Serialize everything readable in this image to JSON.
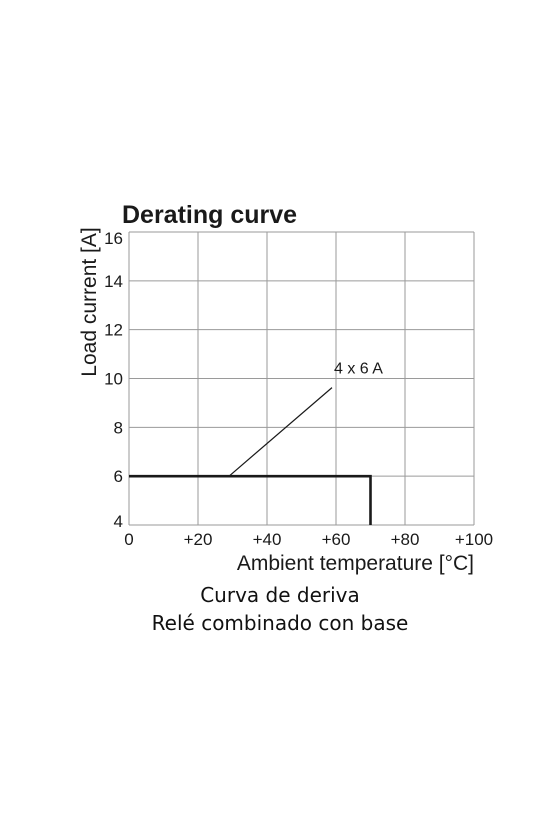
{
  "chart_data": {
    "type": "line",
    "title": "Derating curve",
    "xlabel": "Ambient temperature [°C]",
    "ylabel": "Load current [A]",
    "xlim": [
      0,
      100
    ],
    "ylim": [
      4,
      16
    ],
    "xticks": [
      0,
      20,
      40,
      60,
      80,
      100
    ],
    "xtick_labels": [
      "0",
      "+20",
      "+40",
      "+60",
      "+80",
      "+100"
    ],
    "yticks": [
      4,
      6,
      8,
      10,
      12,
      14,
      16
    ],
    "ytick_labels": [
      "4",
      "6",
      "8",
      "10",
      "12",
      "14",
      "16"
    ],
    "grid": true,
    "series": [
      {
        "x": [
          0,
          70,
          70
        ],
        "y": [
          6,
          6,
          4
        ]
      }
    ],
    "annotations": [
      {
        "text": "4 x 6 A",
        "point": [
          29,
          6
        ],
        "label_at": [
          60,
          10.2
        ]
      }
    ]
  },
  "captions": {
    "line1": "Curva de deriva",
    "line2": "Relé combinado con base"
  },
  "colors": {
    "grid": "#9a9a9a",
    "line": "#1a1a1a",
    "text": "#1a1a1a"
  }
}
